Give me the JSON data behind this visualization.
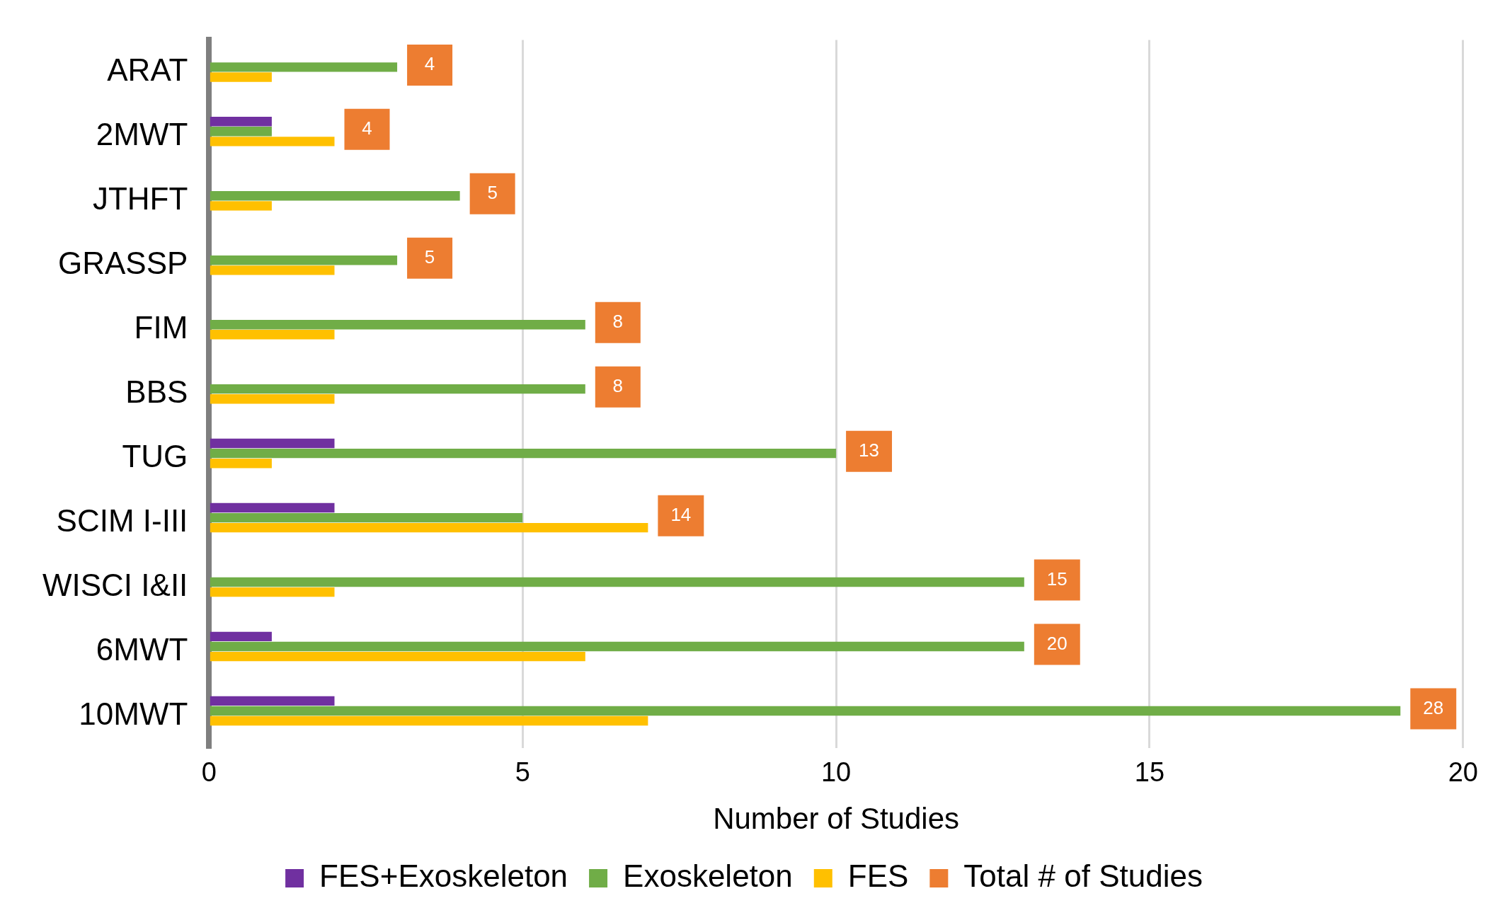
{
  "chart_data": {
    "type": "bar",
    "orientation": "horizontal",
    "xlabel": "Number of Studies",
    "categories": [
      "ARAT",
      "2MWT",
      "JTHFT",
      "GRASSP",
      "FIM",
      "BBS",
      "TUG",
      "SCIM I-III",
      "WISCI I&II",
      "6MWT",
      "10MWT"
    ],
    "series": [
      {
        "name": "FES+Exoskeleton",
        "color": "#7030a0",
        "values": [
          0,
          1,
          0,
          0,
          0,
          0,
          2,
          2,
          0,
          1,
          2
        ]
      },
      {
        "name": "Exoskeleton",
        "color": "#70ad47",
        "values": [
          3,
          1,
          4,
          3,
          6,
          6,
          10,
          5,
          13,
          13,
          19
        ]
      },
      {
        "name": "FES",
        "color": "#ffc000",
        "values": [
          1,
          2,
          1,
          2,
          2,
          2,
          1,
          7,
          2,
          6,
          7
        ]
      },
      {
        "name": "Total # of Studies",
        "color": "#ed7d31",
        "values": [
          null,
          null,
          null,
          null,
          null,
          null,
          null,
          null,
          null,
          null,
          null
        ]
      }
    ],
    "totals": [
      "4",
      "4",
      "5",
      "5",
      "8",
      "8",
      "13",
      "14",
      "15",
      "20",
      "28"
    ],
    "xlim": [
      0,
      20
    ],
    "xticks": [
      0,
      5,
      10,
      15,
      20
    ],
    "grid": "x",
    "legend": "bottom"
  }
}
